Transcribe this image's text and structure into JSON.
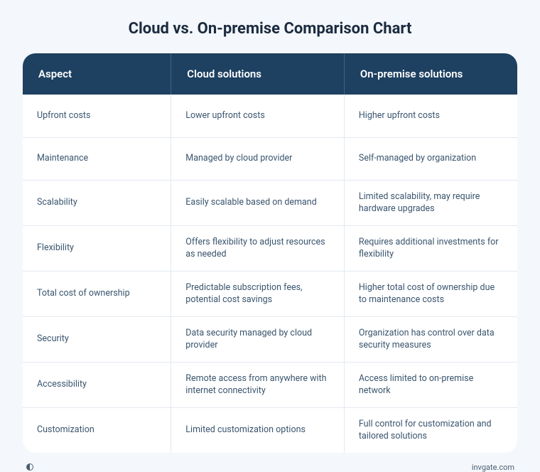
{
  "title": "Cloud vs. On-premise Comparison Chart",
  "table": {
    "type": "table",
    "columns": [
      "Aspect",
      "Cloud solutions",
      "On-premise solutions"
    ],
    "column_widths_pct": [
      30,
      35,
      35
    ],
    "rows": [
      [
        "Upfront costs",
        "Lower upfront costs",
        "Higher upfront costs"
      ],
      [
        "Maintenance",
        "Managed by cloud provider",
        "Self-managed by organization"
      ],
      [
        "Scalability",
        "Easily scalable based on demand",
        "Limited scalability, may require hardware upgrades"
      ],
      [
        "Flexibility",
        "Offers flexibility to adjust resources as needed",
        "Requires additional investments for flexibility"
      ],
      [
        "Total cost of ownership",
        "Predictable subscription fees, potential cost savings",
        "Higher total cost of ownership due to maintenance costs"
      ],
      [
        "Security",
        "Data security managed by cloud provider",
        "Organization has control over data security measures"
      ],
      [
        "Accessibility",
        "Remote access from anywhere with internet connectivity",
        "Access limited to on-premise network"
      ],
      [
        "Customization",
        "Limited customization options",
        "Full control for customization and tailored solutions"
      ]
    ],
    "header_bg": "#1e4061",
    "header_text_color": "#ffffff",
    "header_fontsize": 15,
    "body_text_color": "#3a556e",
    "body_fontsize": 12.5,
    "border_color": "#e3e9f0",
    "row_bg": "#ffffff",
    "border_radius": 18
  },
  "footer": {
    "brand_text": "invgate.com",
    "logo_color": "#4a5e72"
  },
  "page": {
    "bg": "#f4f7fb",
    "title_color": "#1a2b3f",
    "title_fontsize": 22
  }
}
